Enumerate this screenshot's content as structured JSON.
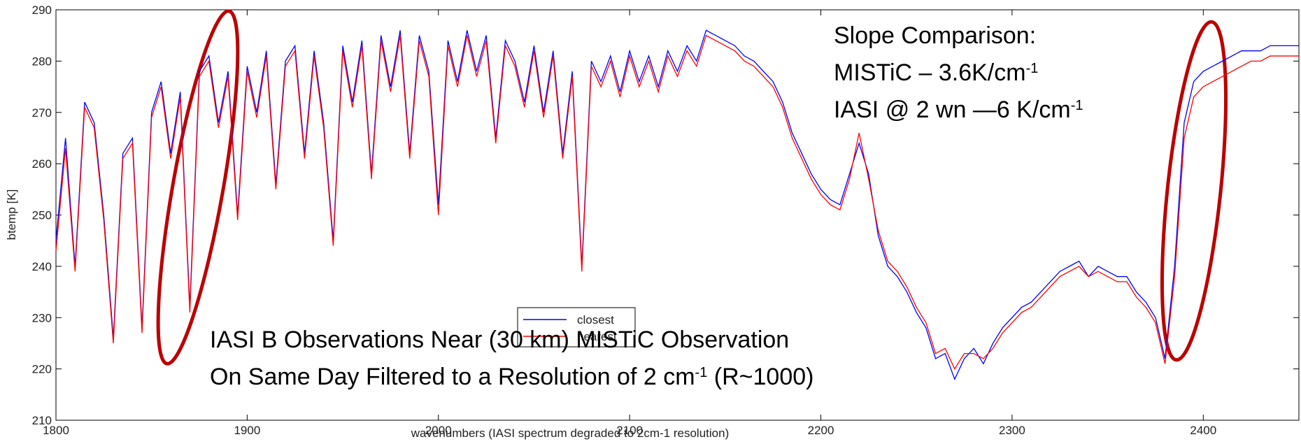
{
  "chart_data": {
    "type": "line",
    "x_label": "wavenumbers (IASI spectrum degraded to 2cm-1 resolution)",
    "y_label": "btemp [K]",
    "xlim": [
      1800,
      2450
    ],
    "ylim": [
      210,
      290
    ],
    "xticks": [
      1800,
      1900,
      2000,
      2100,
      2200,
      2300,
      2400
    ],
    "yticks": [
      210,
      220,
      230,
      240,
      250,
      260,
      270,
      280,
      290
    ],
    "grid": false,
    "legend": "bottom-center",
    "annotations": [
      [
        "Slope Comparison:"
      ],
      [
        "MISTiC – 3.6K/cm",
        "-1"
      ],
      [
        "IASI @ 2 wn —6 K/cm",
        "-1"
      ],
      [
        "IASI B Observations Near (30 km) MISTiC Observation"
      ],
      [
        "On Same Day Filtered to a Resolution of 2 cm",
        "-1",
        "  (R~1000)"
      ]
    ],
    "x": [
      1800,
      1805,
      1810,
      1815,
      1820,
      1825,
      1830,
      1835,
      1840,
      1845,
      1850,
      1855,
      1860,
      1865,
      1870,
      1875,
      1880,
      1885,
      1890,
      1895,
      1900,
      1905,
      1910,
      1915,
      1920,
      1925,
      1930,
      1935,
      1940,
      1945,
      1950,
      1955,
      1960,
      1965,
      1970,
      1975,
      1980,
      1985,
      1990,
      1995,
      2000,
      2005,
      2010,
      2015,
      2020,
      2025,
      2030,
      2035,
      2040,
      2045,
      2050,
      2055,
      2060,
      2065,
      2070,
      2075,
      2080,
      2085,
      2090,
      2095,
      2100,
      2105,
      2110,
      2115,
      2120,
      2125,
      2130,
      2135,
      2140,
      2145,
      2150,
      2155,
      2160,
      2165,
      2170,
      2175,
      2180,
      2185,
      2190,
      2195,
      2200,
      2205,
      2210,
      2215,
      2220,
      2225,
      2230,
      2235,
      2240,
      2245,
      2250,
      2255,
      2260,
      2265,
      2270,
      2275,
      2280,
      2285,
      2290,
      2295,
      2300,
      2305,
      2310,
      2315,
      2320,
      2325,
      2330,
      2335,
      2340,
      2345,
      2350,
      2355,
      2360,
      2365,
      2370,
      2375,
      2380,
      2385,
      2390,
      2395,
      2400,
      2405,
      2410,
      2415,
      2420,
      2425,
      2430,
      2435,
      2440,
      2445,
      2450
    ],
    "series": [
      {
        "name": "closest",
        "color": "#0000ff",
        "values": [
          245,
          265,
          240,
          272,
          268,
          250,
          226,
          262,
          265,
          228,
          270,
          276,
          262,
          274,
          232,
          278,
          281,
          268,
          278,
          250,
          279,
          270,
          282,
          256,
          280,
          283,
          262,
          282,
          268,
          245,
          283,
          272,
          284,
          258,
          285,
          275,
          286,
          262,
          285,
          278,
          252,
          284,
          276,
          286,
          278,
          285,
          265,
          284,
          280,
          272,
          283,
          270,
          282,
          262,
          278,
          240,
          280,
          276,
          281,
          274,
          282,
          276,
          281,
          275,
          282,
          278,
          283,
          280,
          286,
          285,
          284,
          283,
          281,
          280,
          278,
          276,
          272,
          266,
          262,
          258,
          255,
          253,
          252,
          258,
          264,
          258,
          246,
          240,
          238,
          235,
          231,
          228,
          222,
          223,
          218,
          222,
          224,
          221,
          225,
          228,
          230,
          232,
          233,
          235,
          237,
          239,
          240,
          241,
          238,
          240,
          239,
          238,
          238,
          235,
          233,
          230,
          222,
          240,
          268,
          276,
          278,
          279,
          280,
          281,
          282,
          282,
          282,
          283,
          283,
          283,
          283
        ]
      },
      {
        "name": "nearest",
        "color": "#ff0000",
        "values": [
          243,
          263,
          239,
          271,
          267,
          249,
          225,
          261,
          264,
          227,
          269,
          275,
          261,
          273,
          231,
          277,
          280,
          267,
          277,
          249,
          278,
          269,
          281,
          255,
          279,
          282,
          261,
          281,
          267,
          244,
          282,
          271,
          283,
          257,
          284,
          274,
          285,
          261,
          284,
          277,
          250,
          283,
          275,
          285,
          277,
          284,
          264,
          283,
          279,
          271,
          282,
          269,
          281,
          261,
          277,
          239,
          279,
          275,
          280,
          273,
          281,
          275,
          280,
          274,
          281,
          277,
          282,
          279,
          285,
          284,
          283,
          282,
          280,
          279,
          277,
          275,
          271,
          265,
          261,
          257,
          254,
          252,
          251,
          257,
          266,
          257,
          247,
          241,
          239,
          236,
          232,
          229,
          223,
          224,
          220,
          223,
          223,
          222,
          224,
          227,
          229,
          231,
          232,
          234,
          236,
          238,
          239,
          240,
          238,
          239,
          238,
          237,
          237,
          234,
          232,
          229,
          221,
          238,
          265,
          273,
          275,
          276,
          277,
          278,
          279,
          280,
          280,
          281,
          281,
          281,
          281
        ]
      }
    ]
  }
}
